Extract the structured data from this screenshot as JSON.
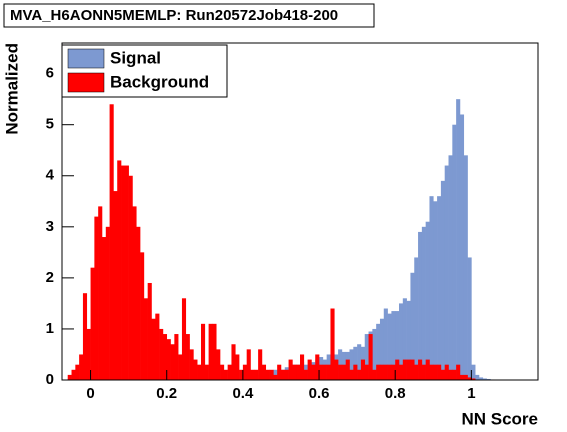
{
  "chart_data": {
    "type": "histogram",
    "title": "MVA_H6AONN5MEMLP: Run20572Job418-200",
    "x_label": "NN Score",
    "y_label": "Normalized",
    "xlim": [
      -0.075,
      1.175
    ],
    "ylim": [
      0,
      6.6
    ],
    "xticks": [
      0,
      0.2,
      0.4,
      0.6,
      0.8,
      1
    ],
    "yticks": [
      0,
      1,
      2,
      3,
      4,
      5,
      6
    ],
    "legend": "top-left",
    "bins": [
      -0.06,
      -0.05,
      -0.04,
      -0.03,
      -0.02,
      -0.01,
      0,
      0.01,
      0.02,
      0.03,
      0.04,
      0.05,
      0.06,
      0.07,
      0.08,
      0.09,
      0.1,
      0.11,
      0.12,
      0.13,
      0.14,
      0.15,
      0.16,
      0.17,
      0.18,
      0.19,
      0.2,
      0.21,
      0.22,
      0.23,
      0.24,
      0.25,
      0.26,
      0.27,
      0.28,
      0.29,
      0.3,
      0.31,
      0.32,
      0.33,
      0.34,
      0.35,
      0.36,
      0.37,
      0.38,
      0.39,
      0.4,
      0.41,
      0.42,
      0.43,
      0.44,
      0.45,
      0.46,
      0.47,
      0.48,
      0.49,
      0.5,
      0.51,
      0.52,
      0.53,
      0.54,
      0.55,
      0.56,
      0.57,
      0.58,
      0.59,
      0.6,
      0.61,
      0.62,
      0.63,
      0.64,
      0.65,
      0.66,
      0.67,
      0.68,
      0.69,
      0.7,
      0.71,
      0.72,
      0.73,
      0.74,
      0.75,
      0.76,
      0.77,
      0.78,
      0.79,
      0.8,
      0.81,
      0.82,
      0.83,
      0.84,
      0.85,
      0.86,
      0.87,
      0.88,
      0.89,
      0.9,
      0.91,
      0.92,
      0.93,
      0.94,
      0.95,
      0.96,
      0.97,
      0.98,
      0.99,
      1,
      1.01,
      1.02,
      1.03,
      1.04,
      1.05,
      1.06,
      1.07,
      1.08,
      1.09,
      1.1
    ],
    "series": [
      {
        "name": "Signal",
        "color": "#7d99d1",
        "values": [
          0.02,
          0.02,
          0,
          0,
          0,
          0,
          0,
          0,
          0,
          0,
          0,
          0,
          0,
          0,
          0,
          0,
          0,
          0,
          0,
          0,
          0,
          0,
          0,
          0,
          0,
          0,
          0.01,
          0.01,
          0.01,
          0.01,
          0.01,
          0.01,
          0.01,
          0.01,
          0.01,
          0.01,
          0.02,
          0.02,
          0.02,
          0.02,
          0.02,
          0.02,
          0.02,
          0.02,
          0.02,
          0.02,
          0.05,
          0.05,
          0.08,
          0.05,
          0.1,
          0.1,
          0.12,
          0.15,
          0.2,
          0.15,
          0.2,
          0.25,
          0.2,
          0.3,
          0.3,
          0.35,
          0.3,
          0.3,
          0.35,
          0.4,
          0.45,
          0.4,
          0.5,
          0.45,
          0.5,
          0.6,
          0.55,
          0.55,
          0.6,
          0.65,
          0.7,
          0.65,
          0.9,
          0.95,
          1.0,
          1.1,
          1.2,
          1.4,
          1.3,
          1.35,
          1.35,
          1.5,
          1.6,
          1.55,
          2.1,
          2.4,
          2.9,
          3.0,
          3.1,
          3.6,
          3.5,
          3.6,
          3.9,
          4.2,
          4.4,
          5.0,
          5.5,
          5.2,
          4.4,
          2.4,
          0.3,
          0.1,
          0.05,
          0.03,
          0.02,
          0.01,
          0,
          0,
          0,
          0
        ]
      },
      {
        "name": "Background",
        "color": "#ff0000",
        "values": [
          0.1,
          0.2,
          0.3,
          0.5,
          1.7,
          1.0,
          2.2,
          3.2,
          3.4,
          2.8,
          3.0,
          5.4,
          3.7,
          4.3,
          4.2,
          4.2,
          4.0,
          3.4,
          3.0,
          2.5,
          1.6,
          1.9,
          1.2,
          1.3,
          1.0,
          0.9,
          0.8,
          0.7,
          0.9,
          0.5,
          1.6,
          0.9,
          0.6,
          0.4,
          0.3,
          1.1,
          0.3,
          1.1,
          1.1,
          0.6,
          0.3,
          0.2,
          0.3,
          0.7,
          0.5,
          0.2,
          0.3,
          0.6,
          0.2,
          0.2,
          0.6,
          0.3,
          0.2,
          0.2,
          0.1,
          0.3,
          0.2,
          0.2,
          0.4,
          0.3,
          0.3,
          0.5,
          0.2,
          0.4,
          0.3,
          0.5,
          0.3,
          0.3,
          0.3,
          1.4,
          0.4,
          0.3,
          0.3,
          0.4,
          0.2,
          0.3,
          0.2,
          0.4,
          0.3,
          0.9,
          0.2,
          0.3,
          0.3,
          0.3,
          0.3,
          0.3,
          0.4,
          0.3,
          0.4,
          0.4,
          0.4,
          0.3,
          0.4,
          0.3,
          0.4,
          0.3,
          0.3,
          0.3,
          0.2,
          0.3,
          0.2,
          0.2,
          0.3,
          0.1,
          0.1,
          0.05,
          0.03,
          0,
          0,
          0,
          0,
          0,
          0,
          0,
          0,
          0
        ]
      }
    ]
  }
}
